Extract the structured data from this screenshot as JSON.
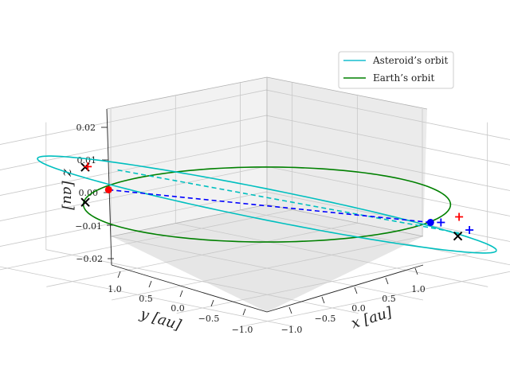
{
  "chart_data": {
    "type": "line3d",
    "axis_labels": {
      "x": "x [au]",
      "y": "y [au]",
      "z": "z [au]"
    },
    "x_ticks": [
      "−1.0",
      "−0.5",
      "0.0",
      "0.5",
      "1.0"
    ],
    "y_ticks": [
      "−1.0",
      "−0.5",
      "0.0",
      "0.5",
      "1.0"
    ],
    "z_ticks": [
      "−0.02",
      "−0.01",
      "0.00",
      "0.01",
      "0.02"
    ],
    "xlim": [
      -1.2,
      1.2
    ],
    "ylim": [
      -1.2,
      1.2
    ],
    "zlim": [
      -0.025,
      0.025
    ],
    "legend": {
      "placement": "upper-right",
      "entries": [
        {
          "label": "Asteroid’s orbit",
          "color": "#17becf"
        },
        {
          "label": "Earth’s orbit",
          "color": "#008000"
        }
      ]
    },
    "series": [
      {
        "name": "Asteroid’s orbit",
        "color": "#00bfbf",
        "kind": "ellipse",
        "semi_major_au": 1.25,
        "semi_minor_au": 0.42,
        "axis_angle_deg": -45,
        "inclination_peak_z": 0.018
      },
      {
        "name": "Earth’s orbit",
        "color": "#008000",
        "kind": "circle",
        "radius_au": 1.0,
        "z": 0.0
      }
    ],
    "lines": [
      {
        "name": "observation-line-dashed-cyan",
        "color": "#00bfbf",
        "from": [
          -0.65,
          0.5,
          0.012
        ],
        "to": [
          0.72,
          -0.78,
          -0.012
        ]
      },
      {
        "name": "observation-line-dashed-blue",
        "color": "#0000ff",
        "from": [
          -0.6,
          0.62,
          0.006
        ],
        "to": [
          0.68,
          -0.58,
          -0.006
        ]
      }
    ],
    "points": [
      {
        "name": "red-dot",
        "marker": "o",
        "color": "#ff0000",
        "pos": [
          -0.6,
          0.62,
          0.006
        ]
      },
      {
        "name": "blue-dot",
        "marker": "o",
        "color": "#0000ff",
        "pos": [
          0.68,
          -0.58,
          -0.006
        ]
      },
      {
        "name": "black-x-upper-left",
        "marker": "x",
        "color": "#000000",
        "pos": [
          -0.78,
          0.62,
          0.013
        ]
      },
      {
        "name": "black-x-left",
        "marker": "x",
        "color": "#000000",
        "pos": [
          -0.55,
          0.85,
          0.004
        ]
      },
      {
        "name": "black-x-lower-right",
        "marker": "x",
        "color": "#000000",
        "pos": [
          0.85,
          -0.62,
          -0.01
        ]
      },
      {
        "name": "red-plus-upper-left",
        "marker": "+",
        "color": "#ff0000",
        "pos": [
          -0.78,
          0.6,
          0.013
        ]
      },
      {
        "name": "red-plus-right",
        "marker": "+",
        "color": "#ff0000",
        "pos": [
          0.78,
          -0.7,
          -0.004
        ]
      },
      {
        "name": "blue-plus-right",
        "marker": "+",
        "color": "#0000ff",
        "pos": [
          0.72,
          -0.62,
          -0.006
        ]
      },
      {
        "name": "blue-plus-lower-right",
        "marker": "+",
        "color": "#0000ff",
        "pos": [
          0.78,
          -0.78,
          -0.01
        ]
      }
    ]
  }
}
